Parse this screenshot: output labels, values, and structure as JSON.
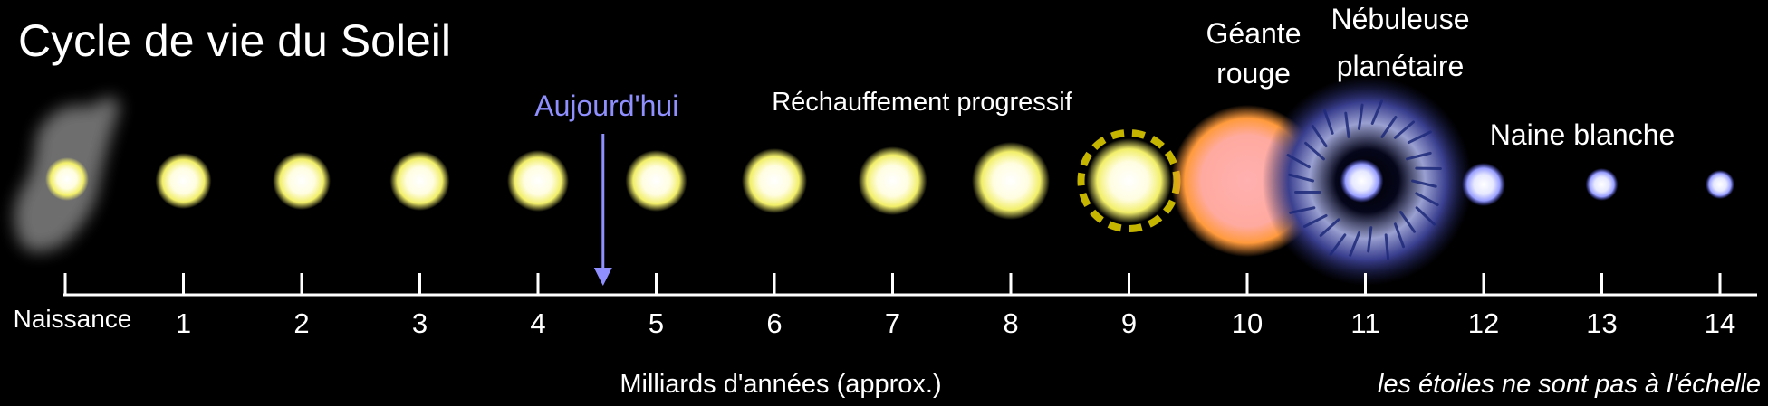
{
  "title": "Cycle de vie du Soleil",
  "today_label": "Aujourd'hui",
  "warming_label": "Réchauffement progressif",
  "red_giant_label": [
    "Géante",
    "rouge"
  ],
  "nebula_label": [
    "Nébuleuse",
    "planétaire"
  ],
  "white_dwarf_label": "Naine blanche",
  "axis": {
    "start_label": "Naissance",
    "ticks": [
      "1",
      "2",
      "3",
      "4",
      "5",
      "6",
      "7",
      "8",
      "9",
      "10",
      "11",
      "12",
      "13",
      "14"
    ],
    "xlabel": "Milliards d'années (approx.)",
    "today_value": 4.55
  },
  "note": "les étoiles ne sont pas à l'échelle",
  "colors": {
    "background": "#000000",
    "text": "#ffffff",
    "today": "#8f8fff",
    "sun_core": "#ffffff",
    "sun_glow": "#f2ef6a",
    "red_giant": "#ffaaa0",
    "red_giant_edge": "#ff9a3c",
    "nebula": "#3a3f8f",
    "white_dwarf": "#c9cdff"
  },
  "stages": [
    {
      "name": "protostar-cloud",
      "age": 0
    },
    {
      "name": "sun",
      "age": 1
    },
    {
      "name": "sun",
      "age": 2
    },
    {
      "name": "sun",
      "age": 3
    },
    {
      "name": "sun",
      "age": 4
    },
    {
      "name": "sun",
      "age": 5
    },
    {
      "name": "sun",
      "age": 6
    },
    {
      "name": "sun",
      "age": 7
    },
    {
      "name": "sun",
      "age": 8
    },
    {
      "name": "sun-unstable",
      "age": 9
    },
    {
      "name": "red-giant",
      "age": 10
    },
    {
      "name": "planetary-nebula",
      "age": 11
    },
    {
      "name": "white-dwarf",
      "age": 12
    },
    {
      "name": "white-dwarf",
      "age": 13
    },
    {
      "name": "white-dwarf",
      "age": 14
    }
  ]
}
